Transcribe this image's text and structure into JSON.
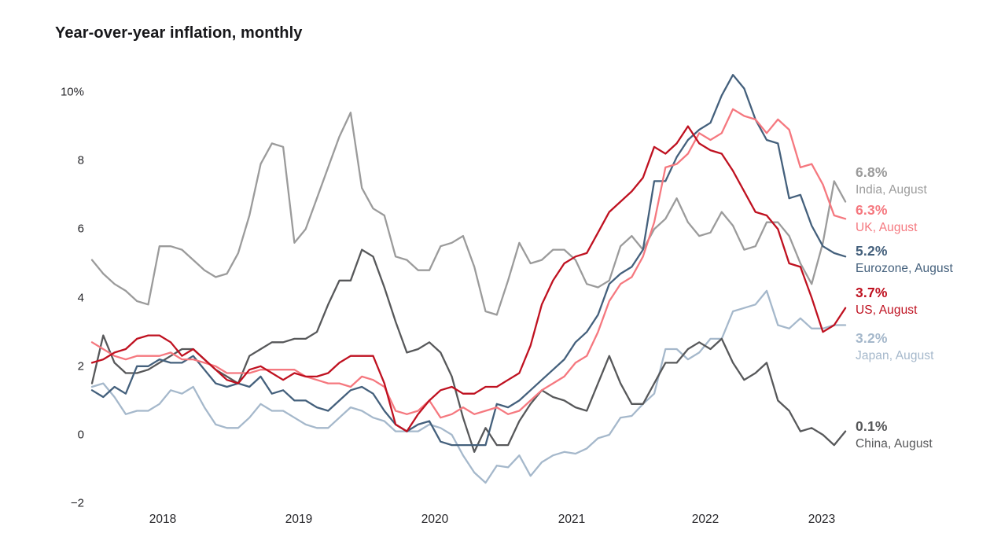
{
  "title": "Year-over-year inflation, monthly",
  "chart_data": {
    "type": "line",
    "title": "Year-over-year inflation, monthly",
    "x_unit": "month",
    "x_start": "2018-01",
    "x_end": "2023-08",
    "months_per_series": 68,
    "grid": false,
    "legend_position": "right-of-line-ends",
    "xlabel": "",
    "ylabel": "",
    "ylim": [
      -2.6,
      10.8
    ],
    "y_ticks": [
      10,
      8,
      6,
      4,
      2,
      0,
      -2
    ],
    "y_tick_labels": [
      "10%",
      "8",
      "6",
      "4",
      "2",
      "0",
      "−2"
    ],
    "x_tick_labels": [
      "2018",
      "2019",
      "2020",
      "2021",
      "2022",
      "2023"
    ],
    "series": [
      {
        "id": "india",
        "name": "India",
        "end_label": "6.8%",
        "sub_label": "India, August",
        "color": "#9b9b9b",
        "values": [
          5.1,
          4.7,
          4.4,
          4.2,
          3.9,
          3.8,
          5.5,
          5.5,
          5.4,
          5.1,
          4.8,
          4.6,
          4.7,
          5.3,
          6.4,
          7.9,
          8.5,
          8.4,
          5.6,
          6.0,
          6.9,
          7.8,
          8.7,
          9.4,
          7.2,
          6.6,
          6.4,
          5.2,
          5.1,
          4.8,
          4.8,
          5.5,
          5.6,
          5.8,
          4.9,
          3.6,
          3.5,
          4.5,
          5.6,
          5.0,
          5.1,
          5.4,
          5.4,
          5.1,
          4.4,
          4.3,
          4.5,
          5.5,
          5.8,
          5.4,
          6.0,
          6.3,
          6.9,
          6.2,
          5.8,
          5.9,
          6.5,
          6.1,
          5.4,
          5.5,
          6.2,
          6.2,
          5.8,
          5.0,
          4.4,
          5.6,
          7.4,
          6.8
        ]
      },
      {
        "id": "japan",
        "name": "Japan",
        "end_label": "3.2%",
        "sub_label": "Japan, August",
        "color": "#a5b8cb",
        "values": [
          1.4,
          1.5,
          1.1,
          0.6,
          0.7,
          0.7,
          0.9,
          1.3,
          1.2,
          1.4,
          0.8,
          0.3,
          0.2,
          0.2,
          0.5,
          0.9,
          0.7,
          0.7,
          0.5,
          0.3,
          0.2,
          0.2,
          0.5,
          0.8,
          0.7,
          0.5,
          0.4,
          0.1,
          0.1,
          0.1,
          0.3,
          0.2,
          0.0,
          -0.6,
          -1.1,
          -1.4,
          -0.9,
          -0.95,
          -0.6,
          -1.2,
          -0.8,
          -0.6,
          -0.5,
          -0.55,
          -0.4,
          -0.1,
          0.0,
          0.5,
          0.55,
          0.9,
          1.2,
          2.5,
          2.5,
          2.2,
          2.4,
          2.8,
          2.8,
          3.6,
          3.7,
          3.8,
          4.2,
          3.2,
          3.1,
          3.4,
          3.1,
          3.1,
          3.2,
          3.2
        ]
      },
      {
        "id": "china",
        "name": "China",
        "end_label": "0.1%",
        "sub_label": "China, August",
        "color": "#57585a",
        "values": [
          1.5,
          2.9,
          2.1,
          1.8,
          1.8,
          1.9,
          2.1,
          2.3,
          2.5,
          2.5,
          2.2,
          1.9,
          1.7,
          1.5,
          2.3,
          2.5,
          2.7,
          2.7,
          2.8,
          2.8,
          3.0,
          3.8,
          4.5,
          4.5,
          5.4,
          5.2,
          4.3,
          3.3,
          2.4,
          2.5,
          2.7,
          2.4,
          1.7,
          0.5,
          -0.5,
          0.2,
          -0.3,
          -0.3,
          0.4,
          0.9,
          1.3,
          1.1,
          1.0,
          0.8,
          0.7,
          1.5,
          2.3,
          1.5,
          0.9,
          0.9,
          1.5,
          2.1,
          2.1,
          2.5,
          2.7,
          2.5,
          2.8,
          2.1,
          1.6,
          1.8,
          2.1,
          1.0,
          0.7,
          0.1,
          0.2,
          0.0,
          -0.3,
          0.1
        ]
      },
      {
        "id": "eurozone",
        "name": "Eurozone",
        "end_label": "5.2%",
        "sub_label": "Eurozone, August",
        "color": "#44607c",
        "values": [
          1.3,
          1.1,
          1.4,
          1.2,
          2.0,
          2.0,
          2.2,
          2.1,
          2.1,
          2.3,
          1.9,
          1.5,
          1.4,
          1.5,
          1.4,
          1.7,
          1.2,
          1.3,
          1.0,
          1.0,
          0.8,
          0.7,
          1.0,
          1.3,
          1.4,
          1.2,
          0.7,
          0.3,
          0.1,
          0.3,
          0.4,
          -0.2,
          -0.3,
          -0.3,
          -0.3,
          -0.3,
          0.9,
          0.8,
          1.0,
          1.3,
          1.6,
          1.9,
          2.2,
          2.7,
          3.0,
          3.5,
          4.4,
          4.7,
          4.9,
          5.4,
          7.4,
          7.4,
          8.1,
          8.6,
          8.9,
          9.1,
          9.9,
          10.5,
          10.1,
          9.2,
          8.6,
          8.5,
          6.9,
          7.0,
          6.1,
          5.5,
          5.3,
          5.2
        ]
      },
      {
        "id": "uk",
        "name": "UK",
        "end_label": "6.3%",
        "sub_label": "UK, August",
        "color": "#f5787f",
        "values": [
          2.7,
          2.5,
          2.3,
          2.2,
          2.3,
          2.3,
          2.3,
          2.4,
          2.2,
          2.2,
          2.1,
          2.0,
          1.8,
          1.8,
          1.8,
          1.9,
          1.9,
          1.9,
          1.9,
          1.7,
          1.6,
          1.5,
          1.5,
          1.4,
          1.7,
          1.6,
          1.4,
          0.7,
          0.6,
          0.7,
          1.0,
          0.5,
          0.6,
          0.8,
          0.6,
          0.7,
          0.8,
          0.6,
          0.7,
          1.0,
          1.3,
          1.5,
          1.7,
          2.1,
          2.3,
          3.0,
          3.9,
          4.4,
          4.6,
          5.2,
          6.2,
          7.8,
          7.9,
          8.2,
          8.8,
          8.6,
          8.8,
          9.5,
          9.3,
          9.2,
          8.8,
          9.2,
          8.9,
          7.8,
          7.9,
          7.3,
          6.4,
          6.3
        ]
      },
      {
        "id": "us",
        "name": "US",
        "end_label": "3.7%",
        "sub_label": "US, August",
        "color": "#bf1120",
        "values": [
          2.1,
          2.2,
          2.4,
          2.5,
          2.8,
          2.9,
          2.9,
          2.7,
          2.3,
          2.5,
          2.2,
          1.9,
          1.6,
          1.5,
          1.9,
          2.0,
          1.8,
          1.6,
          1.8,
          1.7,
          1.7,
          1.8,
          2.1,
          2.3,
          2.3,
          2.3,
          1.5,
          0.3,
          0.1,
          0.6,
          1.0,
          1.3,
          1.4,
          1.2,
          1.2,
          1.4,
          1.4,
          1.6,
          1.8,
          2.6,
          3.8,
          4.5,
          5.0,
          5.2,
          5.3,
          5.9,
          6.5,
          6.8,
          7.1,
          7.5,
          8.4,
          8.2,
          8.5,
          9.0,
          8.5,
          8.3,
          8.2,
          7.7,
          7.1,
          6.5,
          6.4,
          6.0,
          5.0,
          4.9,
          4.0,
          3.0,
          3.2,
          3.7
        ]
      }
    ]
  }
}
